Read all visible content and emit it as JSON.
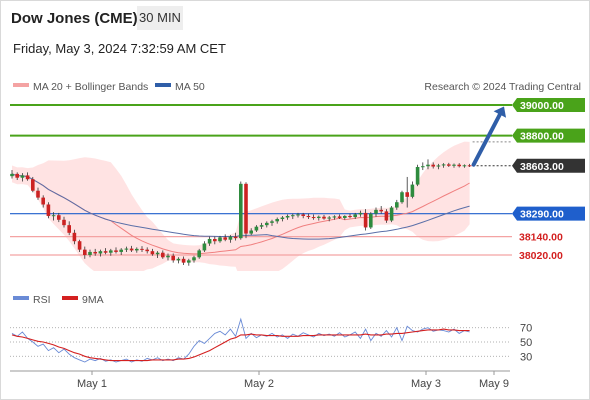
{
  "header": {
    "instrument": "Dow Jones (CME)",
    "timeframe": "30 MIN",
    "datetime": "Friday, May 3, 2024 7:32:59 AM CET"
  },
  "copyright": "Research © 2024 Trading Central",
  "colors": {
    "up": "#2e8b3e",
    "down": "#cc2222",
    "resistance": "#4aa31a",
    "pivot": "#1f5fcc",
    "support": "#f4a3a3",
    "support_text": "#d32020",
    "ma20": "#f08080",
    "ma50": "#5a6fa8",
    "band_fill": "#ffdede",
    "rsi": "#6a8bd6",
    "rsi_ma": "#d42020",
    "arrow": "#2f5ea8"
  },
  "chart_data": [
    {
      "type": "candlestick",
      "legend": [
        {
          "name": "MA 20 + Bollinger Bands",
          "color": "#f08080"
        },
        {
          "name": "MA 50",
          "color": "#2f5ea8"
        }
      ],
      "ylim": [
        37900,
        39070
      ],
      "x_ticks": [
        "May 1",
        "May 2",
        "May 3",
        "May 9"
      ],
      "last_price": "38603.00",
      "levels": [
        {
          "label": "39000.00",
          "value": 39000,
          "role": "resistance"
        },
        {
          "label": "38800.00",
          "value": 38800,
          "role": "resistance"
        },
        {
          "label": "38290.00",
          "value": 38290,
          "role": "pivot"
        },
        {
          "label": "38140.00",
          "value": 38140,
          "role": "support"
        },
        {
          "label": "38020.00",
          "value": 38020,
          "role": "support"
        }
      ],
      "target_arrow": {
        "from": 38610,
        "to": 38990
      },
      "ohlc": [
        [
          38535,
          38575,
          38520,
          38550
        ],
        [
          38550,
          38560,
          38510,
          38525
        ],
        [
          38525,
          38555,
          38500,
          38540
        ],
        [
          38540,
          38560,
          38505,
          38515
        ],
        [
          38515,
          38530,
          38430,
          38440
        ],
        [
          38440,
          38460,
          38380,
          38395
        ],
        [
          38395,
          38410,
          38330,
          38350
        ],
        [
          38350,
          38365,
          38260,
          38275
        ],
        [
          38275,
          38300,
          38245,
          38280
        ],
        [
          38280,
          38295,
          38235,
          38250
        ],
        [
          38250,
          38270,
          38200,
          38215
        ],
        [
          38215,
          38240,
          38150,
          38165
        ],
        [
          38165,
          38185,
          38090,
          38110
        ],
        [
          38110,
          38120,
          38040,
          38055
        ],
        [
          38055,
          38075,
          37995,
          38020
        ],
        [
          38020,
          38055,
          38005,
          38040
        ],
        [
          38040,
          38060,
          38015,
          38030
        ],
        [
          38030,
          38055,
          38010,
          38045
        ],
        [
          38045,
          38065,
          38025,
          38035
        ],
        [
          38035,
          38060,
          38015,
          38050
        ],
        [
          38050,
          38070,
          38030,
          38040
        ],
        [
          38040,
          38065,
          38020,
          38055
        ],
        [
          38055,
          38075,
          38040,
          38062
        ],
        [
          38062,
          38080,
          38040,
          38050
        ],
        [
          38050,
          38070,
          38035,
          38060
        ],
        [
          38060,
          38078,
          38040,
          38055
        ],
        [
          38055,
          38070,
          38030,
          38045
        ],
        [
          38045,
          38060,
          38015,
          38025
        ],
        [
          38025,
          38045,
          38000,
          38035
        ],
        [
          38035,
          38050,
          37995,
          38005
        ],
        [
          38005,
          38030,
          37985,
          38015
        ],
        [
          38015,
          38030,
          37970,
          37985
        ],
        [
          37985,
          38005,
          37965,
          37995
        ],
        [
          37995,
          38010,
          37955,
          37970
        ],
        [
          37970,
          37995,
          37950,
          37985
        ],
        [
          37985,
          38015,
          37970,
          38005
        ],
        [
          38005,
          38060,
          37995,
          38050
        ],
        [
          38050,
          38110,
          38040,
          38095
        ],
        [
          38095,
          38140,
          38080,
          38125
        ],
        [
          38125,
          38140,
          38090,
          38110
        ],
        [
          38110,
          38145,
          38100,
          38135
        ],
        [
          38135,
          38155,
          38110,
          38120
        ],
        [
          38120,
          38150,
          38100,
          38140
        ],
        [
          38140,
          38165,
          38115,
          38130
        ],
        [
          38130,
          38500,
          38120,
          38485
        ],
        [
          38485,
          38495,
          38130,
          38160
        ],
        [
          38160,
          38195,
          38150,
          38180
        ],
        [
          38180,
          38215,
          38170,
          38205
        ],
        [
          38205,
          38230,
          38190,
          38215
        ],
        [
          38215,
          38240,
          38200,
          38230
        ],
        [
          38230,
          38250,
          38210,
          38240
        ],
        [
          38240,
          38265,
          38225,
          38255
        ],
        [
          38255,
          38275,
          38240,
          38265
        ],
        [
          38265,
          38285,
          38250,
          38275
        ],
        [
          38275,
          38290,
          38255,
          38280
        ],
        [
          38280,
          38295,
          38265,
          38285
        ],
        [
          38285,
          38295,
          38260,
          38275
        ],
        [
          38275,
          38290,
          38255,
          38268
        ],
        [
          38268,
          38285,
          38250,
          38262
        ],
        [
          38262,
          38278,
          38245,
          38270
        ],
        [
          38270,
          38282,
          38250,
          38258
        ],
        [
          38258,
          38275,
          38240,
          38265
        ],
        [
          38265,
          38280,
          38250,
          38272
        ],
        [
          38272,
          38285,
          38255,
          38262
        ],
        [
          38262,
          38280,
          38250,
          38275
        ],
        [
          38275,
          38290,
          38260,
          38268
        ],
        [
          38268,
          38295,
          38255,
          38285
        ],
        [
          38285,
          38310,
          38270,
          38295
        ],
        [
          38295,
          38320,
          38180,
          38200
        ],
        [
          38200,
          38300,
          38190,
          38290
        ],
        [
          38290,
          38330,
          38270,
          38315
        ],
        [
          38315,
          38340,
          38290,
          38305
        ],
        [
          38305,
          38320,
          38230,
          38245
        ],
        [
          38245,
          38340,
          38235,
          38330
        ],
        [
          38330,
          38380,
          38315,
          38365
        ],
        [
          38365,
          38440,
          38355,
          38430
        ],
        [
          38430,
          38530,
          38330,
          38400
        ],
        [
          38400,
          38500,
          38390,
          38480
        ],
        [
          38480,
          38610,
          38470,
          38595
        ],
        [
          38595,
          38625,
          38575,
          38600
        ],
        [
          38600,
          38645,
          38580,
          38610
        ],
        [
          38610,
          38625,
          38585,
          38598
        ],
        [
          38598,
          38615,
          38580,
          38605
        ],
        [
          38605,
          38620,
          38590,
          38612
        ],
        [
          38612,
          38622,
          38595,
          38603
        ],
        [
          38603,
          38618,
          38590,
          38610
        ],
        [
          38610,
          38620,
          38592,
          38600
        ],
        [
          38600,
          38612,
          38590,
          38606
        ],
        [
          38606,
          38615,
          38595,
          38603
        ]
      ]
    },
    {
      "type": "line",
      "legend": [
        {
          "name": "RSI",
          "color": "#6a8bd6"
        },
        {
          "name": "9MA",
          "color": "#d42020"
        }
      ],
      "ylim": [
        15,
        85
      ],
      "y_ticks": [
        70,
        50,
        30
      ],
      "series": [
        {
          "name": "RSI",
          "values": [
            62,
            58,
            64,
            55,
            50,
            44,
            47,
            38,
            42,
            35,
            40,
            33,
            28,
            25,
            22,
            26,
            24,
            27,
            23,
            25,
            22,
            24,
            26,
            22,
            25,
            23,
            27,
            25,
            28,
            24,
            26,
            24,
            28,
            26,
            33,
            44,
            52,
            48,
            55,
            62,
            65,
            60,
            68,
            58,
            82,
            55,
            62,
            56,
            60,
            58,
            62,
            57,
            60,
            55,
            61,
            58,
            63,
            60,
            57,
            62,
            59,
            61,
            58,
            63,
            57,
            60,
            64,
            55,
            68,
            52,
            62,
            58,
            66,
            57,
            70,
            52,
            72,
            66,
            64,
            68,
            70,
            65,
            67,
            66,
            64,
            68,
            62,
            66,
            64
          ]
        },
        {
          "name": "9MA",
          "values": [
            60,
            58,
            57,
            55,
            53,
            51,
            50,
            48,
            46,
            43,
            41,
            38,
            35,
            33,
            30,
            28,
            27,
            26,
            25,
            24,
            24,
            24,
            24,
            24,
            24,
            24,
            24,
            25,
            25,
            25,
            25,
            25,
            26,
            26,
            27,
            29,
            32,
            35,
            38,
            42,
            46,
            50,
            54,
            56,
            60,
            60,
            61,
            60,
            60,
            59,
            59,
            59,
            58,
            58,
            58,
            58,
            59,
            59,
            59,
            60,
            60,
            60,
            60,
            60,
            60,
            60,
            60,
            60,
            61,
            60,
            60,
            60,
            61,
            61,
            62,
            62,
            63,
            64,
            65,
            66,
            67,
            67,
            67,
            68,
            67,
            67,
            66,
            66,
            66
          ]
        }
      ]
    }
  ]
}
